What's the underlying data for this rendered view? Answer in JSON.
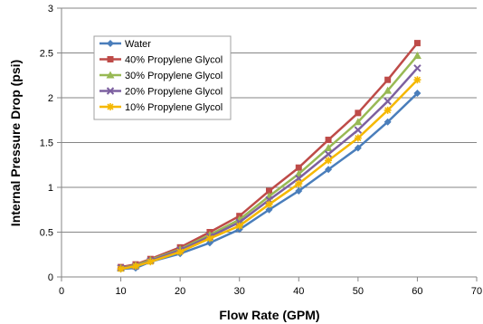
{
  "chart_data": {
    "type": "line",
    "title": "",
    "xlabel": "Flow Rate (GPM)",
    "ylabel": "Internal Pressure Drop (psi)",
    "xlim": [
      0,
      70
    ],
    "ylim": [
      0,
      3
    ],
    "x_ticks": [
      0,
      10,
      20,
      30,
      40,
      50,
      60,
      70
    ],
    "y_ticks": [
      0,
      0.5,
      1,
      1.5,
      2,
      2.5,
      3
    ],
    "x_tick_labels": [
      "0",
      "10",
      "20",
      "30",
      "40",
      "50",
      "60",
      "70"
    ],
    "y_tick_labels": [
      "0",
      "0.5",
      "1",
      "1.5",
      "2",
      "2.5",
      "3"
    ],
    "grid": "horizontal",
    "legend_position": "top-left",
    "x": [
      10,
      12.5,
      15,
      20,
      25,
      30,
      35,
      40,
      45,
      50,
      55,
      60
    ],
    "series": [
      {
        "name": "Water",
        "color": "#4a7ebb",
        "marker": "diamond",
        "values": [
          0.09,
          0.1,
          0.17,
          0.26,
          0.38,
          0.53,
          0.75,
          0.96,
          1.2,
          1.44,
          1.73,
          2.05
        ]
      },
      {
        "name": "40% Propylene Glycol",
        "color": "#be4b48",
        "marker": "square",
        "values": [
          0.11,
          0.14,
          0.2,
          0.33,
          0.5,
          0.68,
          0.96,
          1.22,
          1.53,
          1.83,
          2.2,
          2.61
        ]
      },
      {
        "name": "30% Propylene Glycol",
        "color": "#98b954",
        "marker": "triangle",
        "values": [
          0.1,
          0.13,
          0.19,
          0.31,
          0.47,
          0.64,
          0.9,
          1.15,
          1.44,
          1.73,
          2.08,
          2.47
        ]
      },
      {
        "name": "20% Propylene Glycol",
        "color": "#7d60a0",
        "marker": "x",
        "values": [
          0.1,
          0.12,
          0.18,
          0.3,
          0.45,
          0.61,
          0.86,
          1.1,
          1.37,
          1.64,
          1.96,
          2.33
        ]
      },
      {
        "name": "10% Propylene Glycol",
        "color": "#f5b800",
        "marker": "star",
        "values": [
          0.09,
          0.12,
          0.17,
          0.28,
          0.43,
          0.57,
          0.81,
          1.04,
          1.3,
          1.55,
          1.86,
          2.2
        ]
      }
    ]
  }
}
